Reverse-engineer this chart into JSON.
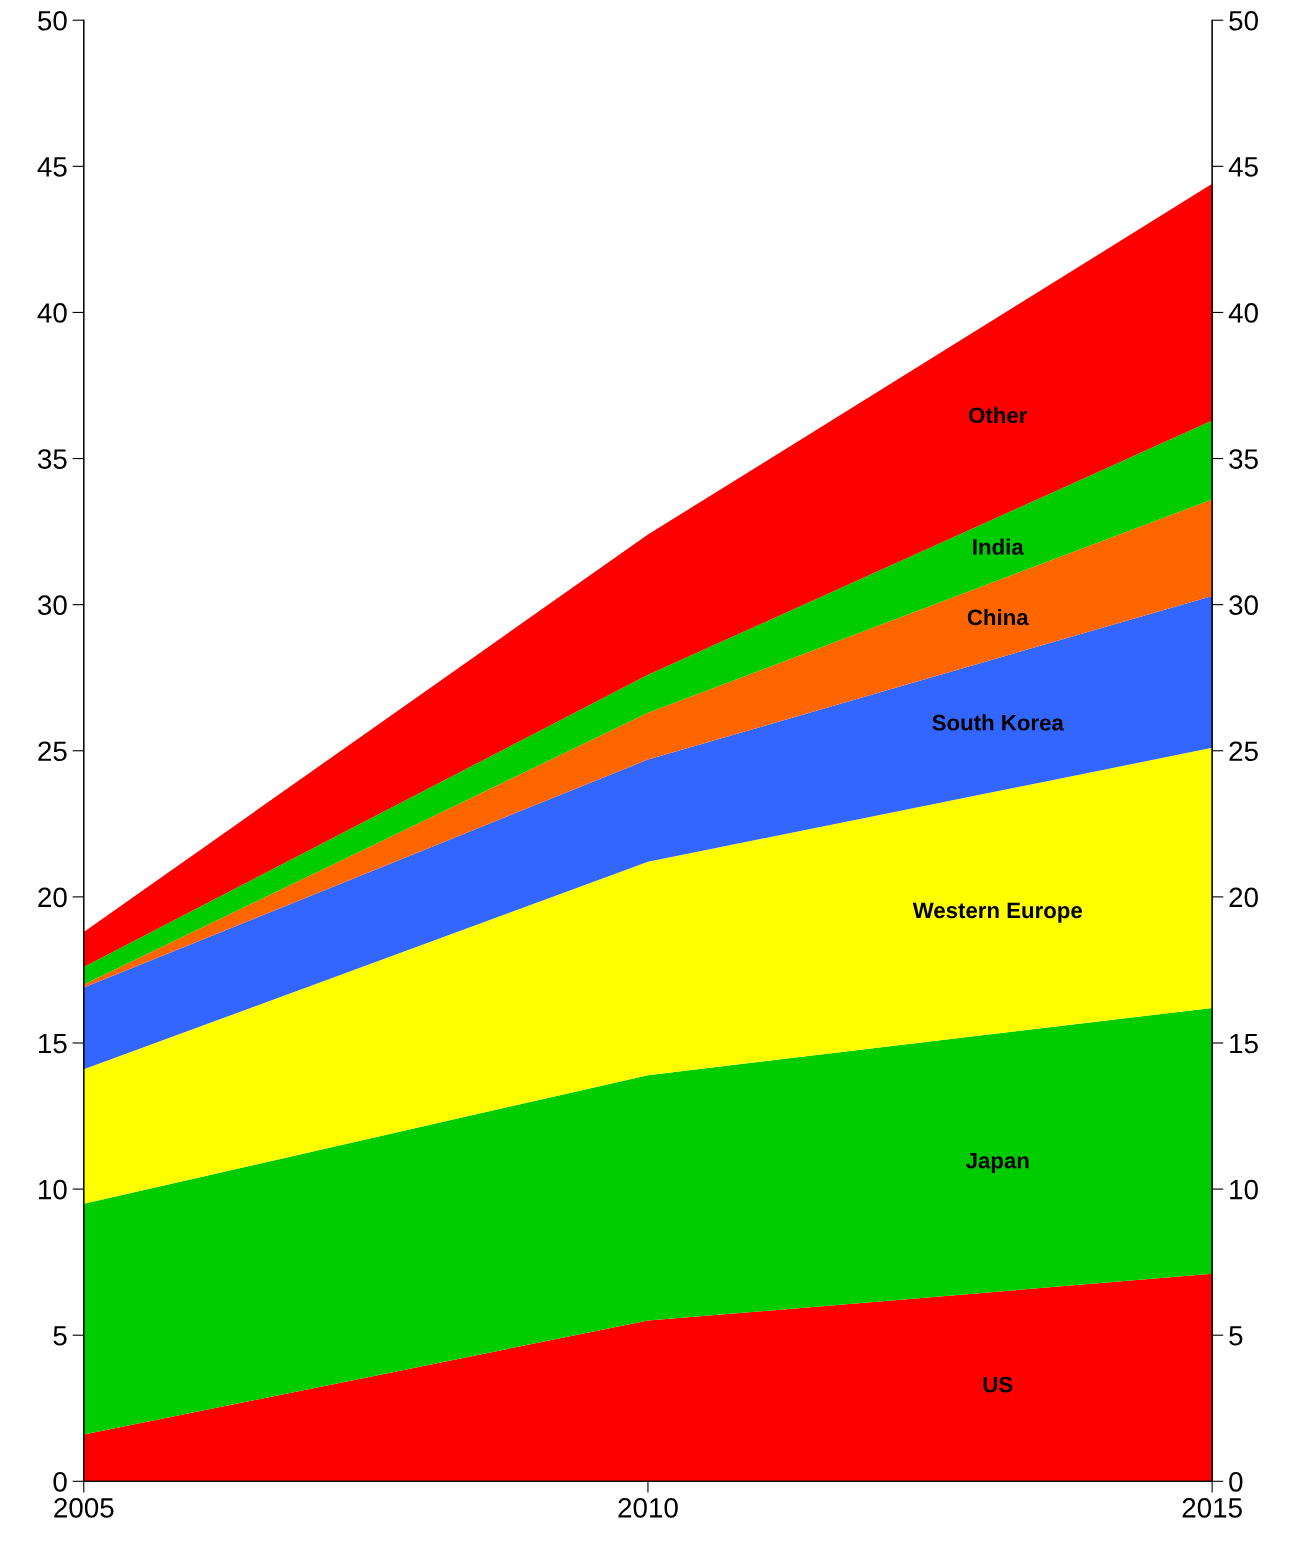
{
  "chart_data": {
    "type": "area",
    "stacked": true,
    "x": [
      2005,
      2010,
      2015
    ],
    "series": [
      {
        "name": "US",
        "color": "#ff0000",
        "values": [
          1.6,
          5.5,
          7.1
        ]
      },
      {
        "name": "Japan",
        "color": "#00cc00",
        "values": [
          7.9,
          8.4,
          9.1
        ]
      },
      {
        "name": "Western Europe",
        "color": "#ffff00",
        "values": [
          4.6,
          7.3,
          8.9
        ]
      },
      {
        "name": "South Korea",
        "color": "#3366ff",
        "values": [
          2.8,
          3.5,
          5.2
        ]
      },
      {
        "name": "China",
        "color": "#ff6600",
        "values": [
          0.1,
          1.6,
          3.3
        ]
      },
      {
        "name": "India",
        "color": "#00cc00",
        "values": [
          0.6,
          1.3,
          2.7
        ]
      },
      {
        "name": "Other",
        "color": "#ff0000",
        "values": [
          1.2,
          4.8,
          8.1
        ]
      }
    ],
    "xlim": [
      2005,
      2015
    ],
    "xticks": [
      2005,
      2010,
      2015
    ],
    "ylim": [
      0,
      50
    ],
    "yticks": [
      0,
      5,
      10,
      15,
      20,
      25,
      30,
      35,
      40,
      45,
      50
    ],
    "y2lim": [
      0,
      50
    ],
    "y2ticks": [
      0,
      5,
      10,
      15,
      20,
      25,
      30,
      35,
      40,
      45,
      50
    ],
    "grid": false,
    "legend": false
  }
}
